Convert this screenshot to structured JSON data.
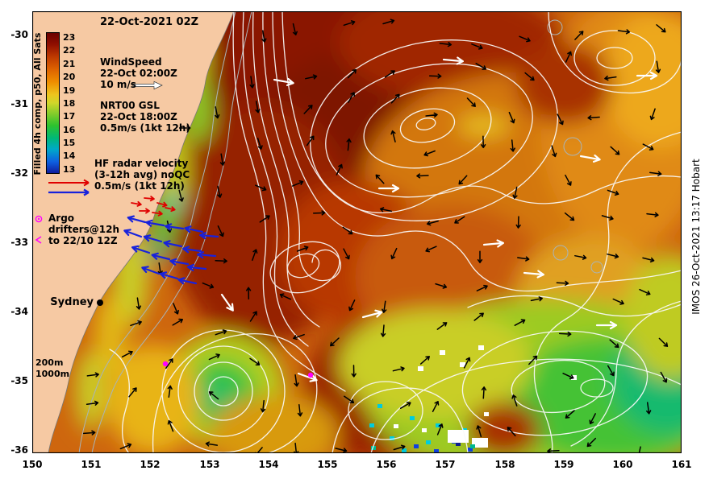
{
  "title": "22-Oct-2021 02Z",
  "credit": "IMOS 26-Oct-2021 13:17 Hobart",
  "colorbar": {
    "label": "Filled 4h comp, p50, All Sats",
    "ticks": [
      "23",
      "22",
      "21",
      "20",
      "19",
      "18",
      "17",
      "16",
      "15",
      "14",
      "13"
    ],
    "stops": [
      "#6B0000 0%",
      "#8F0E00 8%",
      "#BE3A00 17%",
      "#DE6300 26%",
      "#EE8E00 35%",
      "#EEC51E 44%",
      "#CFD62A 50%",
      "#7FCB2B 58%",
      "#2EC22E 66%",
      "#00B877 75%",
      "#00A9C8 83%",
      "#0E5FE0 92%",
      "#101D9E 100%"
    ]
  },
  "legend": {
    "wind": {
      "line1": "WindSpeed",
      "line2": "22-Oct 02:00Z",
      "line3": "10 m/s"
    },
    "gsl": {
      "line1": "NRT00 GSL",
      "line2": "22-Oct 18:00Z",
      "line3": "0.5m/s (1kt 12h)"
    },
    "hf": {
      "line1": "HF radar velocity",
      "line2": "(3-12h avg) noQC",
      "line3": "0.5m/s (1kt 12h)"
    },
    "argo": {
      "line1": "Argo",
      "line2": "drifters@12h",
      "line3": "to 22/10 12Z"
    }
  },
  "map": {
    "city": "Sydney",
    "isobath_200": "200m",
    "isobath_1000": "1000m"
  },
  "axes": {
    "x_ticks": [
      "150",
      "151",
      "152",
      "153",
      "154",
      "155",
      "156",
      "157",
      "158",
      "159",
      "160",
      "161"
    ],
    "y_ticks": [
      "-30",
      "-31",
      "-32",
      "-33",
      "-34",
      "-35",
      "-36"
    ]
  },
  "colors": {
    "land": "#F6C9A3",
    "wind_arrow": "#FFFFFF",
    "gsl_arrow": "#000000",
    "hf_red": "#E00000",
    "hf_blue": "#1822DC",
    "argo": "#FF00FF"
  }
}
